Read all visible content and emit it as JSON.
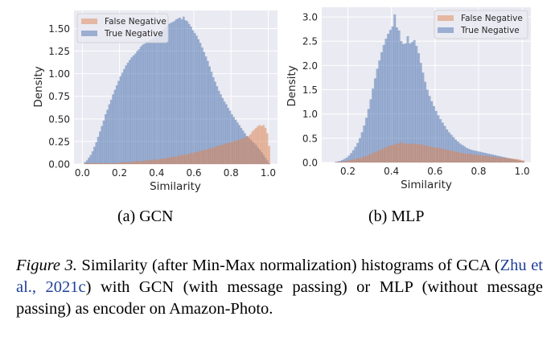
{
  "figure": {
    "subcaptions": [
      "(a) GCN",
      "(b) MLP"
    ],
    "caption_label": "Figure 3.",
    "caption_part1": " Similarity (after Min-Max normalization) histograms of GCA (",
    "caption_cite": "Zhu et al., 2021c",
    "caption_part2": ") with GCN (with message passing) or MLP (without message passing) as encoder on Amazon-Photo."
  },
  "colors": {
    "axes_bg": "#eaeaf2",
    "grid": "#ffffff",
    "false_negative": "#dd8452",
    "true_negative": "#4c72b0"
  },
  "chart_data": [
    {
      "type": "bar",
      "subtype": "histogram-overlay",
      "title": "(a) GCN",
      "xlabel": "Similarity",
      "ylabel": "Density",
      "xlim": [
        -0.045,
        1.05
      ],
      "ylim": [
        0,
        1.7
      ],
      "xticks": [
        "0.0",
        "0.2",
        "0.4",
        "0.6",
        "0.8",
        "1.0"
      ],
      "xtick_values": [
        0.0,
        0.2,
        0.4,
        0.6,
        0.8,
        1.0
      ],
      "yticks": [
        "0.00",
        "0.25",
        "0.50",
        "0.75",
        "1.00",
        "1.25",
        "1.50"
      ],
      "ytick_values": [
        0.0,
        0.25,
        0.5,
        0.75,
        1.0,
        1.25,
        1.5
      ],
      "grid": true,
      "legend": "top-left",
      "bin_width": 0.01,
      "bin_start": 0.01,
      "series": [
        {
          "name": "False Negative",
          "color": "#dd8452",
          "values": [
            0.01,
            0.01,
            0.01,
            0.01,
            0.01,
            0.01,
            0.01,
            0.01,
            0.01,
            0.01,
            0.01,
            0.01,
            0.01,
            0.01,
            0.01,
            0.01,
            0.01,
            0.01,
            0.01,
            0.02,
            0.02,
            0.02,
            0.02,
            0.02,
            0.02,
            0.02,
            0.03,
            0.03,
            0.03,
            0.03,
            0.03,
            0.03,
            0.04,
            0.04,
            0.04,
            0.04,
            0.04,
            0.05,
            0.05,
            0.05,
            0.05,
            0.06,
            0.06,
            0.06,
            0.07,
            0.07,
            0.07,
            0.08,
            0.08,
            0.08,
            0.09,
            0.09,
            0.1,
            0.1,
            0.1,
            0.11,
            0.11,
            0.12,
            0.12,
            0.13,
            0.13,
            0.14,
            0.14,
            0.15,
            0.15,
            0.16,
            0.16,
            0.17,
            0.18,
            0.18,
            0.19,
            0.2,
            0.2,
            0.21,
            0.21,
            0.22,
            0.23,
            0.23,
            0.24,
            0.24,
            0.25,
            0.26,
            0.26,
            0.27,
            0.28,
            0.28,
            0.29,
            0.3,
            0.31,
            0.33,
            0.36,
            0.38,
            0.4,
            0.42,
            0.43,
            0.42,
            0.43,
            0.4,
            0.34,
            0.2
          ]
        },
        {
          "name": "True Negative",
          "color": "#4c72b0",
          "values": [
            0.02,
            0.04,
            0.07,
            0.1,
            0.14,
            0.19,
            0.24,
            0.3,
            0.36,
            0.42,
            0.48,
            0.55,
            0.6,
            0.66,
            0.71,
            0.77,
            0.82,
            0.87,
            0.92,
            0.97,
            1.01,
            1.05,
            1.09,
            1.12,
            1.15,
            1.18,
            1.2,
            1.22,
            1.25,
            1.27,
            1.3,
            1.32,
            1.33,
            1.35,
            1.36,
            1.37,
            1.38,
            1.39,
            1.41,
            1.43,
            1.45,
            1.47,
            1.49,
            1.51,
            1.53,
            1.55,
            1.56,
            1.57,
            1.58,
            1.6,
            1.61,
            1.62,
            1.6,
            1.63,
            1.59,
            1.58,
            1.55,
            1.52,
            1.48,
            1.45,
            1.42,
            1.38,
            1.34,
            1.29,
            1.24,
            1.19,
            1.14,
            1.08,
            1.02,
            0.96,
            0.91,
            0.86,
            0.81,
            0.77,
            0.73,
            0.69,
            0.66,
            0.62,
            0.59,
            0.55,
            0.52,
            0.49,
            0.46,
            0.43,
            0.4,
            0.37,
            0.34,
            0.31,
            0.29,
            0.27,
            0.25,
            0.23,
            0.21,
            0.18,
            0.16,
            0.13,
            0.1,
            0.07,
            0.04,
            0.01
          ]
        }
      ]
    },
    {
      "type": "bar",
      "subtype": "histogram-overlay",
      "title": "(b) MLP",
      "xlabel": "Similarity",
      "ylabel": "Density",
      "xlim": [
        0.08,
        1.04
      ],
      "ylim": [
        0,
        3.2
      ],
      "xticks": [
        "0.2",
        "0.4",
        "0.6",
        "0.8",
        "1.0"
      ],
      "xtick_values": [
        0.2,
        0.4,
        0.6,
        0.8,
        1.0
      ],
      "yticks": [
        "0.0",
        "0.5",
        "1.0",
        "1.5",
        "2.0",
        "2.5",
        "3.0"
      ],
      "ytick_values": [
        0.0,
        0.5,
        1.0,
        1.5,
        2.0,
        2.5,
        3.0
      ],
      "grid": true,
      "legend": "top-right",
      "bin_width": 0.01,
      "bin_start": 0.13,
      "series": [
        {
          "name": "False Negative",
          "color": "#dd8452",
          "values": [
            0.0,
            0.0,
            0.01,
            0.01,
            0.02,
            0.02,
            0.03,
            0.04,
            0.05,
            0.06,
            0.07,
            0.08,
            0.09,
            0.1,
            0.12,
            0.13,
            0.15,
            0.17,
            0.19,
            0.21,
            0.23,
            0.25,
            0.27,
            0.29,
            0.31,
            0.33,
            0.35,
            0.36,
            0.37,
            0.38,
            0.39,
            0.42,
            0.38,
            0.39,
            0.38,
            0.38,
            0.39,
            0.38,
            0.37,
            0.38,
            0.37,
            0.36,
            0.35,
            0.34,
            0.33,
            0.32,
            0.31,
            0.3,
            0.3,
            0.29,
            0.28,
            0.27,
            0.26,
            0.25,
            0.24,
            0.23,
            0.22,
            0.21,
            0.2,
            0.19,
            0.18,
            0.18,
            0.17,
            0.17,
            0.16,
            0.16,
            0.15,
            0.15,
            0.14,
            0.14,
            0.13,
            0.13,
            0.12,
            0.12,
            0.11,
            0.11,
            0.1,
            0.1,
            0.1,
            0.09,
            0.09,
            0.08,
            0.08,
            0.07,
            0.07,
            0.06,
            0.05,
            0.04
          ]
        },
        {
          "name": "True Negative",
          "color": "#4c72b0",
          "values": [
            0.0,
            0.01,
            0.02,
            0.03,
            0.05,
            0.07,
            0.1,
            0.14,
            0.19,
            0.25,
            0.32,
            0.4,
            0.5,
            0.62,
            0.76,
            0.92,
            1.1,
            1.3,
            1.52,
            1.73,
            1.93,
            2.1,
            2.27,
            2.42,
            2.55,
            2.65,
            2.73,
            2.8,
            3.05,
            2.78,
            2.72,
            2.5,
            2.44,
            2.45,
            2.6,
            2.45,
            2.48,
            2.52,
            2.4,
            2.25,
            2.05,
            1.85,
            1.66,
            1.5,
            1.37,
            1.26,
            1.16,
            1.06,
            0.97,
            0.89,
            0.82,
            0.75,
            0.68,
            0.62,
            0.57,
            0.52,
            0.47,
            0.43,
            0.39,
            0.36,
            0.33,
            0.3,
            0.28,
            0.26,
            0.25,
            0.24,
            0.23,
            0.22,
            0.21,
            0.2,
            0.19,
            0.18,
            0.17,
            0.16,
            0.15,
            0.14,
            0.13,
            0.12,
            0.11,
            0.1,
            0.09,
            0.08,
            0.07,
            0.06,
            0.05,
            0.04,
            0.03,
            0.02
          ]
        }
      ]
    }
  ]
}
